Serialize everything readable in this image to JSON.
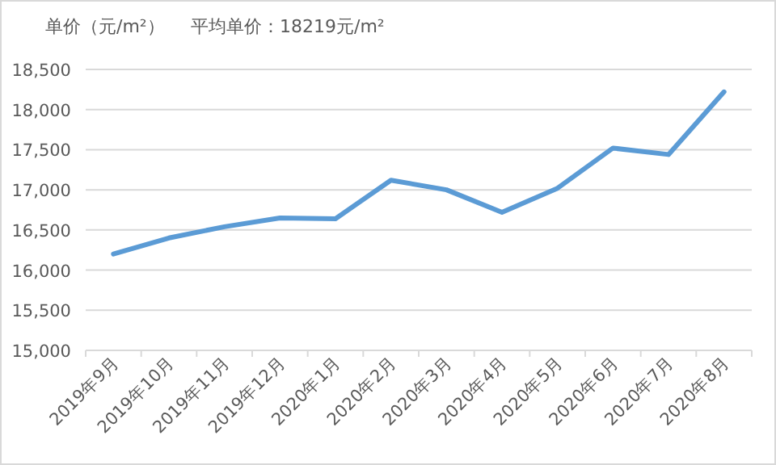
{
  "chart_data": {
    "type": "line",
    "title": "单价（元/m²）",
    "subtitle": "平均单价：18219元/m²",
    "categories": [
      "2019年9月",
      "2019年10月",
      "2019年11月",
      "2019年12月",
      "2020年1月",
      "2020年2月",
      "2020年3月",
      "2020年4月",
      "2020年5月",
      "2020年6月",
      "2020年7月",
      "2020年8月"
    ],
    "series": [
      {
        "color": "#5b9bd5",
        "values": [
          16200,
          16400,
          16540,
          16650,
          16640,
          17120,
          17000,
          16720,
          17020,
          17520,
          17440,
          18220
        ]
      }
    ],
    "ylim": [
      15000,
      18500
    ],
    "yticks": [
      {
        "value": 15000,
        "label": "15,000"
      },
      {
        "value": 15500,
        "label": "15,500"
      },
      {
        "value": 16000,
        "label": "16,000"
      },
      {
        "value": 16500,
        "label": "16,500"
      },
      {
        "value": 17000,
        "label": "17,000"
      },
      {
        "value": 17500,
        "label": "17,500"
      },
      {
        "value": 18000,
        "label": "18,000"
      },
      {
        "value": 18500,
        "label": "18,500"
      }
    ],
    "grid": "y",
    "marker": "none",
    "line_style": "solid"
  }
}
